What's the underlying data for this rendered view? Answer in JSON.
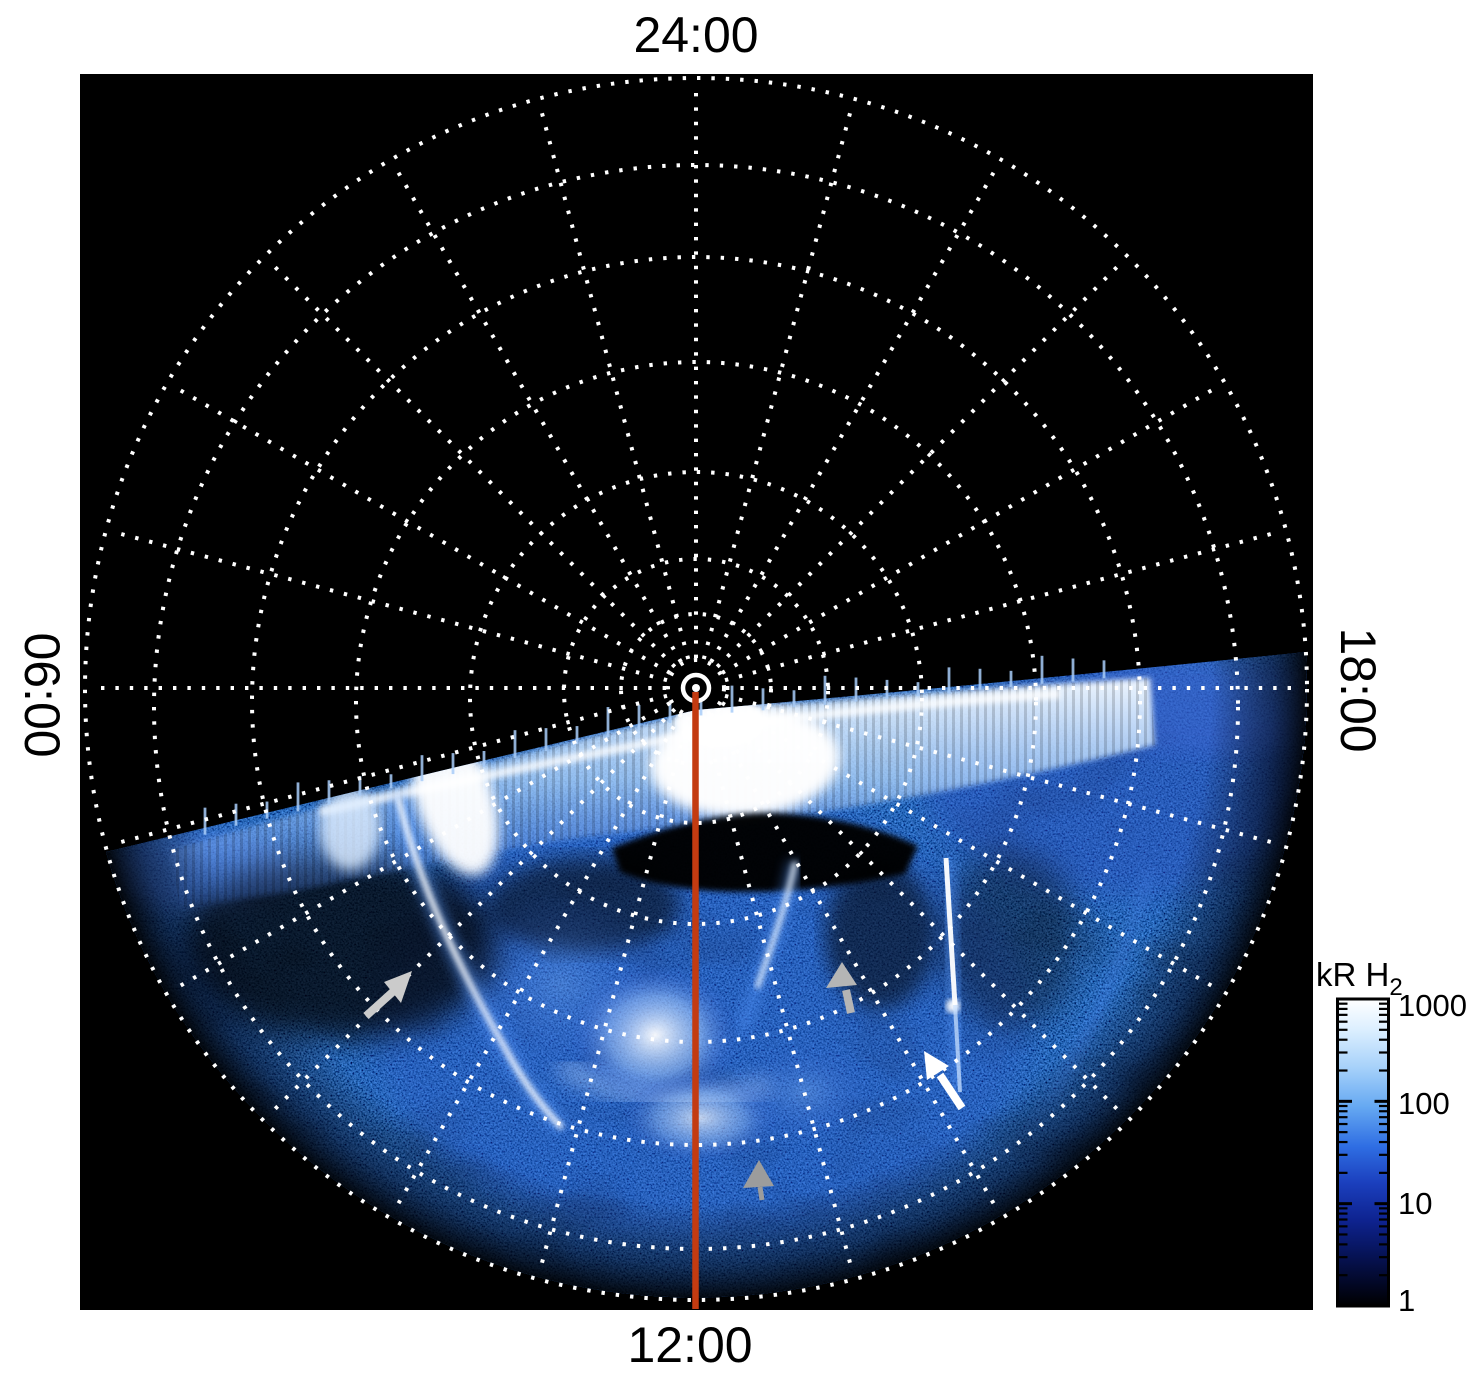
{
  "figure": {
    "time_labels": {
      "top": "24:00",
      "right": "18:00",
      "bottom": "12:00",
      "left": "06:00"
    },
    "colorbar": {
      "title_main": "kR H",
      "title_sub": "2",
      "ticks": [
        "1000",
        "100",
        "10",
        "1"
      ]
    }
  },
  "colors": {
    "plot_background": "#000000",
    "grid": "#ffffff",
    "noon_meridian_line": "#c33b11",
    "arrow_gray_light": "#cbcbcb",
    "arrow_gray_mid": "#b5b5b5",
    "arrow_gray_dark": "#9c9c9c",
    "arrow_white": "#ffffff",
    "page_background": "#ffffff"
  },
  "chart_data": {
    "type": "heatmap",
    "projection": "polar local-time projection centered on the pole, 24:00 at top, 12:00 at bottom, 06:00 at left, 18:00 at right",
    "angular_axis": {
      "labels": [
        "24:00",
        "06:00",
        "12:00",
        "18:00"
      ],
      "label_positions": [
        "top",
        "left",
        "bottom",
        "right"
      ],
      "grid_spoke_interval_hours": 1,
      "grid_style": "white dotted"
    },
    "radial_axis": {
      "grid_rings": 6,
      "inner_rings": 2,
      "center_marker": "small solid white circle",
      "tick_labels_shown": false
    },
    "colorbar": {
      "label": "kR H2",
      "scale": "log",
      "range": [
        1,
        1000
      ],
      "ticks": [
        1000,
        100,
        10,
        1
      ],
      "gradient_top_to_bottom": [
        "#ffffff",
        "#a8d2fa",
        "#2f6ee3",
        "#0e2390",
        "#000000"
      ],
      "position": "right of plot, lower half"
    },
    "content": {
      "description": "UV auroral emission image: nightside (upper) half of the disk is black (no data); dayside (lower) half filled with speckled blue emission of a few to tens of kR out to the limb",
      "features": [
        {
          "name": "main auroral band",
          "appearance": "bright white-to-light-blue band with jagged scan edges running along the dawn-to-dusk terminator, brightest (saturated white, ~1000 kR) near local noon and mid-morning"
        },
        {
          "name": "data-gap notch",
          "appearance": "black scalloped wedge just below the band straddling the noon meridian"
        },
        {
          "name": "curved narrow arc in morning sector",
          "appearance": "thin bright white arc curving equatorward",
          "pointer": "light gray arrow pointing up-right"
        },
        {
          "name": "bright arc segment near noon",
          "appearance": "short bright arc",
          "pointer": "gray arrow pointing up"
        },
        {
          "name": "narrow bright streak in afternoon sector",
          "appearance": "thin vertical white streak",
          "pointer": "white arrow pointing up-left"
        },
        {
          "name": "equatorward diffuse patch on noon meridian",
          "appearance": "diffuse emission",
          "pointer": "gray arrowhead pointing up"
        },
        {
          "name": "diffuse patchy emission",
          "appearance": "irregular white/blue patches equatorward of the band near local noon"
        }
      ],
      "noon_meridian_line": {
        "color": "#c33b11",
        "from": "pole (center)",
        "to": "bottom of plot at 12:00"
      }
    }
  }
}
